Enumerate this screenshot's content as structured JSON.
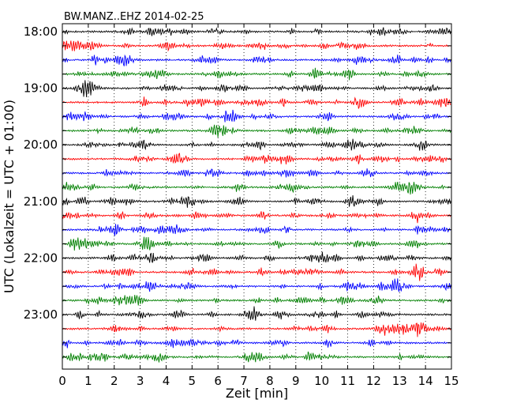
{
  "chart_data": {
    "type": "line",
    "title": "BW.MANZ..EHZ 2014-02-25",
    "xlabel": "Zeit  [min]",
    "ylabel": "UTC (Lokalzeit = UTC + 01:00)",
    "xlim": [
      0,
      15
    ],
    "x_ticks": [
      "0",
      "1",
      "2",
      "3",
      "4",
      "5",
      "6",
      "7",
      "8",
      "9",
      "10",
      "11",
      "12",
      "13",
      "14",
      "15"
    ],
    "y_tick_labels": [
      "18:00",
      "19:00",
      "20:00",
      "21:00",
      "22:00",
      "23:00"
    ],
    "trace_start": "18:00",
    "trace_interval_min": 15,
    "trace_count": 24,
    "trace_colors": [
      "#000000",
      "#ff0000",
      "#0000ff",
      "#008000"
    ],
    "grid": "vertical dotted",
    "legend": "none"
  }
}
